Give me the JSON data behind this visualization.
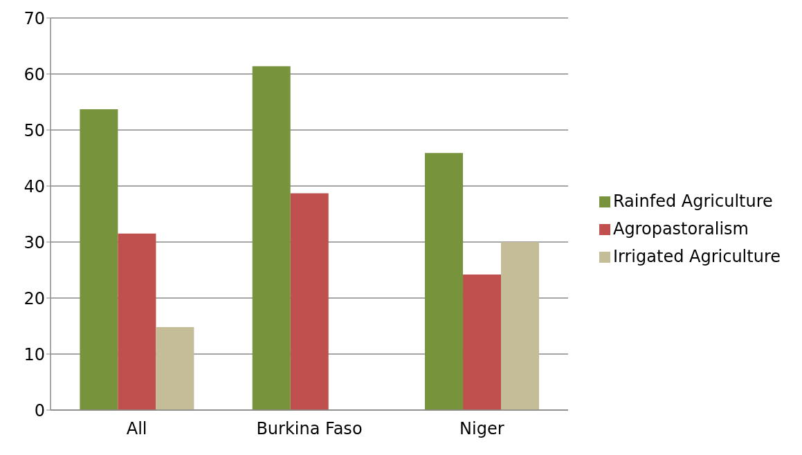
{
  "chart_data": {
    "type": "bar",
    "categories": [
      "All",
      "Burkina Faso",
      "Niger"
    ],
    "series": [
      {
        "name": "Rainfed Agriculture",
        "color": "#77933c",
        "values": [
          53.7,
          61.4,
          45.9
        ]
      },
      {
        "name": "Agropastoralism",
        "color": "#c0504d",
        "values": [
          31.5,
          38.7,
          24.2
        ]
      },
      {
        "name": "Irrigated Agriculture",
        "color": "#c4bd97",
        "values": [
          14.8,
          0,
          30.0
        ]
      }
    ],
    "ylim": [
      0,
      70
    ],
    "yticks": [
      0,
      10,
      20,
      30,
      40,
      50,
      60,
      70
    ],
    "grid": "y",
    "legend": "right"
  }
}
